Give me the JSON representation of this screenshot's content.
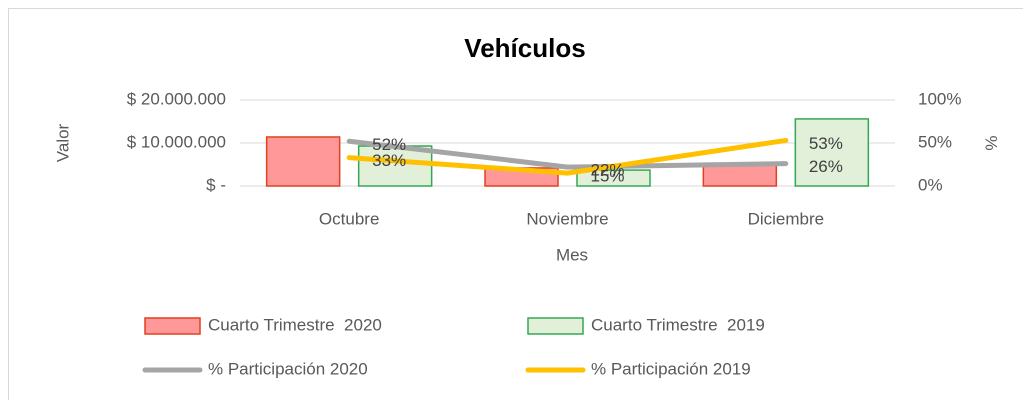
{
  "chart_data": {
    "type": "bar-line",
    "title": "Vehículos",
    "x_label": "Mes",
    "y_label": "Valor",
    "y2_label": "%",
    "categories": [
      "Octubre",
      "Noviembre",
      "Diciembre"
    ],
    "ylim": [
      0,
      20000000
    ],
    "yticks": [
      {
        "value": 0,
        "label": "$ -"
      },
      {
        "value": 10000000,
        "label": "$ 10.000.000"
      },
      {
        "value": 20000000,
        "label": "$ 20.000.000"
      }
    ],
    "y2lim": [
      0,
      100
    ],
    "y2ticks": [
      {
        "value": 0,
        "label": "0%"
      },
      {
        "value": 50,
        "label": "50%"
      },
      {
        "value": 100,
        "label": "100%"
      }
    ],
    "grid": true,
    "series": [
      {
        "name": "Cuarto Trimestre  2020",
        "kind": "bar",
        "color": "#e2401f",
        "fill": "#ff9999",
        "values": [
          11400000,
          4200000,
          5300000
        ]
      },
      {
        "name": "Cuarto Trimestre  2019",
        "kind": "bar",
        "color": "#33a853",
        "fill": "#e2f0d9",
        "values": [
          9300000,
          3700000,
          15600000
        ]
      },
      {
        "name": "% Participación 2020",
        "kind": "line",
        "axis": "y2",
        "color": "#a5a5a5",
        "values": [
          52,
          22,
          26
        ],
        "value_labels": [
          "52%",
          "22%",
          "26%"
        ]
      },
      {
        "name": "% Participación 2019",
        "kind": "line",
        "axis": "y2",
        "color": "#ffc000",
        "values": [
          33,
          15,
          53
        ],
        "value_labels": [
          "33%",
          "15%",
          "53%"
        ]
      }
    ]
  }
}
